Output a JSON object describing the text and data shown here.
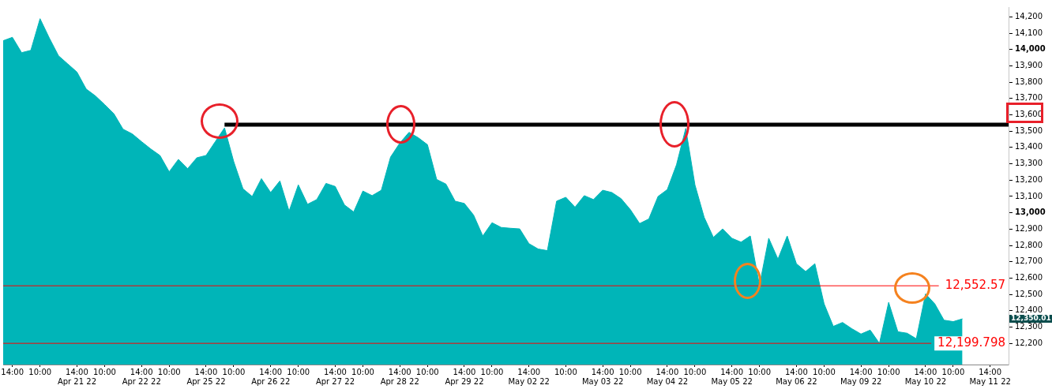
{
  "chart_data": {
    "type": "area",
    "categories": [
      null,
      "14:00",
      null,
      null,
      "10:00",
      null,
      null,
      null,
      "14:00\nApr 21 22",
      null,
      null,
      "10:00",
      null,
      null,
      null,
      "14:00\nApr 22 22",
      null,
      null,
      "10:00",
      null,
      null,
      null,
      "14:00\nApr 25 22",
      null,
      null,
      "10:00",
      null,
      null,
      null,
      "14:00\nApr 26 22",
      null,
      null,
      "10:00",
      null,
      null,
      null,
      "14:00\nApr 27 22",
      null,
      null,
      "10:00",
      null,
      null,
      null,
      "14:00\nApr 28 22",
      null,
      null,
      "10:00",
      null,
      null,
      null,
      "14:00\nApr 29 22",
      null,
      null,
      "10:00",
      null,
      null,
      null,
      "14:00\nMay 02 22",
      null,
      null,
      null,
      "10:00",
      null,
      null,
      null,
      "14:00\nMay 03 22",
      null,
      null,
      "10:00",
      null,
      null,
      null,
      "14:00\nMay 04 22",
      null,
      null,
      "10:00",
      null,
      null,
      null,
      "14:00\nMay 05 22",
      null,
      null,
      "10:00",
      null,
      null,
      null,
      "14:00\nMay 06 22",
      null,
      null,
      "10:00",
      null,
      null,
      null,
      "14:00\nMay 09 22",
      null,
      null,
      "10:00",
      null,
      null,
      null,
      "14:00\nMay 10 22",
      null,
      null,
      "10:00",
      null,
      null,
      null,
      "14:00\nMay 11 22",
      null,
      null
    ],
    "series": [
      {
        "color": "#00b5b8",
        "values": [
          14054,
          14075,
          13981,
          13995,
          14189,
          14071,
          13962,
          13912,
          13862,
          13758,
          13716,
          13663,
          13607,
          13512,
          13483,
          13436,
          13391,
          13351,
          13251,
          13327,
          13270,
          13337,
          13351,
          13436,
          13520,
          13313,
          13147,
          13100,
          13209,
          13124,
          13195,
          13010,
          13171,
          13052,
          13081,
          13180,
          13161,
          13048,
          13005,
          13133,
          13105,
          13138,
          13341,
          13427,
          13493,
          13460,
          13417,
          13204,
          13176,
          13071,
          13057,
          12986,
          12858,
          12939,
          12910,
          12905,
          12901,
          12811,
          12778,
          12768,
          13071,
          13095,
          13034,
          13105,
          13081,
          13138,
          13124,
          13086,
          13019,
          12934,
          12962,
          13100,
          13142,
          13294,
          13517,
          13171,
          12972,
          12849,
          12901,
          12844,
          12820,
          12858,
          12555,
          12844,
          12716,
          12858,
          12688,
          12640,
          12688,
          12442,
          12304,
          12328,
          12290,
          12257,
          12281,
          12200,
          12451,
          12271,
          12262,
          12228,
          12503,
          12442,
          12342,
          12333,
          12350,
          null,
          null,
          null,
          null,
          null
        ]
      },
      {
        "type": "line",
        "color": "#000000",
        "values": [
          null,
          null,
          null,
          null,
          null,
          null,
          null,
          null,
          null,
          null,
          null,
          null,
          null,
          null,
          null,
          null,
          null,
          null,
          null,
          null,
          null,
          null,
          null,
          null,
          13540,
          13540,
          13540,
          13540,
          13540,
          13540,
          13540,
          13540,
          13540,
          13540,
          13540,
          13540,
          13540,
          13540,
          13540,
          13540,
          13540,
          13540,
          13540,
          13540,
          13540,
          13540,
          13540,
          13540,
          13540,
          13540,
          13540,
          13540,
          13540,
          13540,
          13540,
          13540,
          13540,
          13540,
          13540,
          13540,
          13540,
          13540,
          13540,
          13540,
          13540,
          13540,
          13540,
          13540,
          13540,
          13540,
          13540,
          13540,
          13540,
          13540,
          13540,
          13540,
          13540,
          13540,
          13540,
          13540,
          13540,
          13540,
          13540,
          13540,
          13540,
          13540,
          13540,
          13540,
          13540,
          13540,
          13540,
          13540,
          13540,
          13540,
          13540,
          13540,
          13540,
          13540,
          13540,
          13540,
          13540,
          13540,
          13540,
          13540,
          13540,
          13540,
          13540,
          13540,
          13540,
          13540
        ]
      }
    ],
    "ylim": [
      12070,
      14260
    ],
    "yticks": [
      {
        "value": 12200,
        "label": "12,200"
      },
      {
        "value": 12300,
        "label": "12,300"
      },
      {
        "value": 12400,
        "label": "12,400"
      },
      {
        "value": 12500,
        "label": "12,500"
      },
      {
        "value": 12600,
        "label": "12,600"
      },
      {
        "value": 12700,
        "label": "12,700"
      },
      {
        "value": 12800,
        "label": "12,800"
      },
      {
        "value": 12900,
        "label": "12,900"
      },
      {
        "value": 13000,
        "label": "13,000"
      },
      {
        "value": 13100,
        "label": "13,100"
      },
      {
        "value": 13200,
        "label": "13,200"
      },
      {
        "value": 13300,
        "label": "13,300"
      },
      {
        "value": 13400,
        "label": "13,400"
      },
      {
        "value": 13500,
        "label": "13,500"
      },
      {
        "value": 13600,
        "label": "13,600"
      },
      {
        "value": 13700,
        "label": "13,700"
      },
      {
        "value": 13800,
        "label": "13,800"
      },
      {
        "value": 13900,
        "label": "13,900"
      },
      {
        "value": 14000,
        "label": "14,000"
      },
      {
        "value": 14100,
        "label": "14,100"
      },
      {
        "value": 14200,
        "label": "14,200"
      }
    ],
    "ref_lines": [
      {
        "axis": "y",
        "value": 12552.57,
        "label": "12,552.57",
        "color": "#ff0000"
      },
      {
        "axis": "y",
        "value": 12199.798,
        "label": "12,199.798",
        "color": "#ff0000"
      }
    ],
    "annotations": [
      "12,350.01"
    ],
    "grid": false,
    "legend": false
  }
}
